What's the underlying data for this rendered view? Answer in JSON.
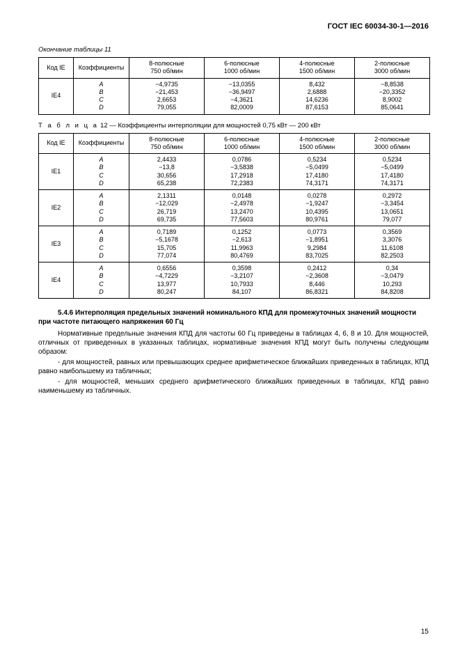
{
  "doc_title": "ГОСТ IEC 60034-30-1—2016",
  "page_number": "15",
  "table11": {
    "caption": "Окончание таблицы 11",
    "headers": {
      "code": "Код IE",
      "coef": "Коэффициенты",
      "c8": "8-полюсные\n750 об/мин",
      "c6": "6-полюсные\n1000 об/мин",
      "c4": "4-полюсные\n1500 об/мин",
      "c2": "2-полюсные\n3000 об/мин"
    },
    "row": {
      "code": "IE4",
      "coefs": "A\nB\nC\nD",
      "v8": "−4,9735\n−21,453\n2,6653\n79,055",
      "v6": "−13,0355\n−36,9497\n−4,3621\n82,0009",
      "v4": "8,432\n2,6888\n14,6236\n87,6153",
      "v2": "−8,8538\n−20,3352\n8,9002\n85,0641"
    }
  },
  "table12": {
    "caption_word": "Т а б л и ц а",
    "caption_rest": "  12 — Коэффициенты интерполяции для мощностей 0,75 кВт — 200 кВт",
    "headers": {
      "code": "Код IE",
      "coef": "Коэффициенты",
      "c8": "8-полюсные\n750 об/мин",
      "c6": "6-полюсные\n1000 об/мин",
      "c4": "4-полюсные\n1500 об/мин",
      "c2": "2-полюсные\n3000 об/мин"
    },
    "rows": [
      {
        "code": "IE1",
        "coefs": "A\nB\nC\nD",
        "v8": "2,4433\n−13,8\n30,656\n65,238",
        "v6": "0,0786\n−3,5838\n17,2918\n72,2383",
        "v4": "0,5234\n−5,0499\n17,4180\n74,3171",
        "v2": "0,5234\n−5,0499\n17,4180\n74,3171"
      },
      {
        "code": "IE2",
        "coefs": "A\nB\nC\nD",
        "v8": "2,1311\n−12,029\n26,719\n69,735",
        "v6": "0,0148\n−2,4978\n13,2470\n77,5603",
        "v4": "0,0278\n−1,9247\n10,4395\n80,9761",
        "v2": "0,2972\n−3,3454\n13,0651\n79,077"
      },
      {
        "code": "IE3",
        "coefs": "A\nB\nC\nD",
        "v8": "0,7189\n−5,1678\n15,705\n77,074",
        "v6": "0,1252\n−2,613\n11,9963\n80,4769",
        "v4": "0,0773\n−1,8951\n9,2984\n83,7025",
        "v2": "0,3569\n3,3076\n11,6108\n82,2503"
      },
      {
        "code": "IE4",
        "coefs": "A\nB\nC\nD",
        "v8": "0,6556\n−4,7229\n13,977\n80,247",
        "v6": "0,3598\n−3,2107\n10,7933\n84,107",
        "v4": "0,2412\n−2,3608\n8,446\n86,8321",
        "v2": "0,34\n−3,0479\n10,293\n84,8208"
      }
    ]
  },
  "section": {
    "heading": "5.4.6 Интерполяция предельных значений номинального КПД для промежуточных значений мощности при частоте питающего напряжения 60 Гц",
    "p1": "Нормативные предельные значения КПД для частоты 60 Гц приведены в таблицах 4, 6, 8 и 10. Для мощностей, отличных от приведенных в указанных таблицах, нормативные значения КПД могут быть получены следующим образом:",
    "p2": "- для мощностей, равных или превышающих среднее арифметическое ближайших приведенных в таблицах, КПД равно наибольшему из табличных;",
    "p3": "- для мощностей, меньших среднего арифметического ближайших приведенных в таблицах, КПД равно наименьшему из табличных."
  }
}
